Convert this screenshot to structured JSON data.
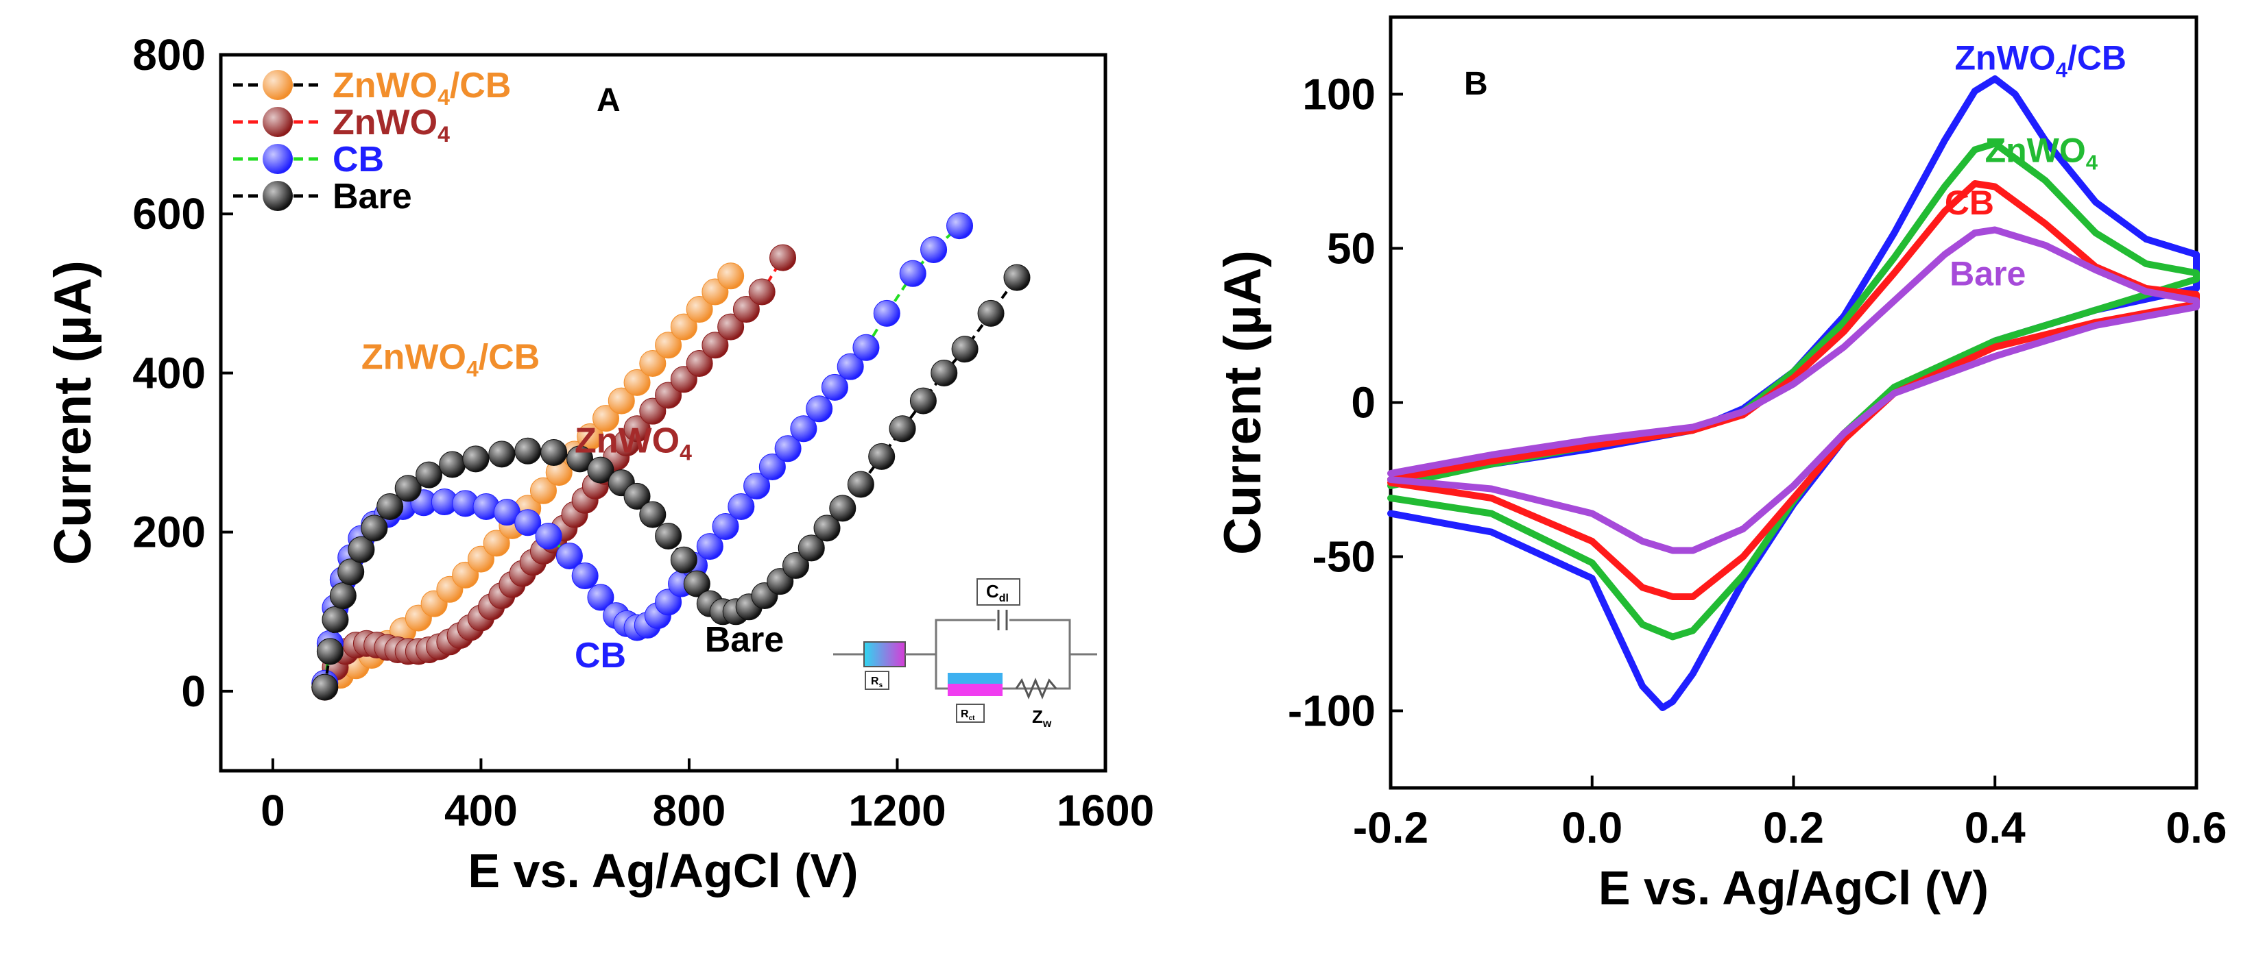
{
  "chart_data": [
    {
      "panel": "A",
      "type": "scatter",
      "title": "",
      "panel_label": "A",
      "xlabel": "E vs. Ag/AgCl (V)",
      "ylabel": "Current (µA)",
      "xlim": [
        -100,
        1600
      ],
      "ylim": [
        -100,
        800
      ],
      "xticks": [
        0,
        400,
        800,
        1200,
        1600
      ],
      "yticks": [
        0,
        200,
        400,
        600,
        800
      ],
      "grid": false,
      "legend": {
        "placement": "top-left",
        "entries": [
          {
            "base": "ZnWO",
            "sub": "4",
            "tail": "/CB",
            "marker_color": "#f28e2b",
            "line_color": "#000000",
            "text_color": "#f28e2b"
          },
          {
            "base": "ZnWO",
            "sub": "4",
            "tail": "",
            "marker_color": "#8b1a1a",
            "line_color": "#ff1a1a",
            "text_color": "#a52a2a"
          },
          {
            "base": "CB",
            "sub": "",
            "tail": "",
            "marker_color": "#1f1fff",
            "line_color": "#22dd22",
            "text_color": "#1f1fff"
          },
          {
            "base": "Bare",
            "sub": "",
            "tail": "",
            "marker_color": "#111111",
            "line_color": "#000000",
            "text_color": "#000000"
          }
        ]
      },
      "annotations": [
        {
          "base": "ZnWO",
          "sub": "4",
          "tail": "/CB",
          "color": "#f28e2b",
          "x": 170,
          "y": 405
        },
        {
          "base": "ZnWO",
          "sub": "4",
          "tail": "",
          "color": "#a52a2a",
          "x": 580,
          "y": 300
        },
        {
          "base": "CB",
          "sub": "",
          "tail": "",
          "color": "#1f1fff",
          "x": 580,
          "y": 30
        },
        {
          "base": "Bare",
          "sub": "",
          "tail": "",
          "color": "#000000",
          "x": 830,
          "y": 50
        }
      ],
      "inset": {
        "labels": [
          "C",
          "dl",
          "R",
          "s",
          "R",
          "ct",
          "Z",
          "w"
        ]
      },
      "series": [
        {
          "name": "ZnWO4/CB",
          "color": "#f28e2b",
          "x": [
            100,
            130,
            160,
            190,
            220,
            250,
            280,
            310,
            340,
            370,
            400,
            430,
            460,
            490,
            520,
            550,
            580,
            610,
            640,
            670,
            700,
            730,
            760,
            790,
            820,
            850,
            880
          ],
          "y": [
            10,
            20,
            32,
            45,
            60,
            76,
            92,
            110,
            128,
            146,
            166,
            186,
            208,
            230,
            252,
            275,
            298,
            320,
            343,
            365,
            388,
            412,
            435,
            458,
            480,
            502,
            522
          ]
        },
        {
          "name": "ZnWO4",
          "color": "#8b1a1a",
          "x": [
            100,
            120,
            140,
            160,
            180,
            200,
            220,
            240,
            260,
            280,
            300,
            320,
            340,
            360,
            380,
            400,
            420,
            440,
            460,
            480,
            500,
            520,
            540,
            560,
            580,
            600,
            620,
            640,
            660,
            680,
            700,
            730,
            760,
            790,
            820,
            850,
            880,
            910,
            940,
            980
          ],
          "y": [
            5,
            30,
            50,
            58,
            60,
            58,
            55,
            52,
            50,
            50,
            52,
            56,
            62,
            70,
            80,
            92,
            106,
            120,
            134,
            148,
            162,
            176,
            190,
            205,
            222,
            240,
            258,
            276,
            294,
            312,
            330,
            352,
            372,
            392,
            412,
            435,
            458,
            480,
            502,
            545
          ]
        },
        {
          "name": "CB",
          "color": "#1f1fff",
          "x": [
            100,
            110,
            120,
            135,
            150,
            170,
            195,
            220,
            250,
            290,
            330,
            370,
            410,
            450,
            490,
            530,
            570,
            600,
            630,
            660,
            680,
            700,
            720,
            740,
            760,
            785,
            810,
            840,
            870,
            900,
            930,
            960,
            990,
            1020,
            1050,
            1080,
            1110,
            1140,
            1180,
            1230,
            1270,
            1320
          ],
          "y": [
            10,
            60,
            105,
            140,
            168,
            192,
            210,
            222,
            232,
            237,
            238,
            236,
            232,
            225,
            212,
            195,
            170,
            145,
            118,
            95,
            85,
            80,
            83,
            95,
            112,
            135,
            158,
            182,
            207,
            232,
            258,
            282,
            305,
            330,
            355,
            382,
            408,
            432,
            475,
            525,
            555,
            585
          ]
        },
        {
          "name": "Bare",
          "color": "#111111",
          "x": [
            100,
            110,
            120,
            135,
            150,
            170,
            195,
            225,
            260,
            300,
            345,
            390,
            440,
            490,
            540,
            590,
            630,
            670,
            700,
            730,
            760,
            790,
            815,
            840,
            865,
            890,
            915,
            945,
            975,
            1005,
            1035,
            1065,
            1095,
            1130,
            1170,
            1210,
            1250,
            1290,
            1330,
            1380,
            1430
          ],
          "y": [
            5,
            50,
            90,
            120,
            150,
            178,
            205,
            232,
            255,
            272,
            285,
            292,
            298,
            302,
            300,
            292,
            278,
            262,
            245,
            222,
            195,
            165,
            135,
            110,
            100,
            100,
            106,
            120,
            138,
            158,
            180,
            205,
            230,
            260,
            295,
            330,
            365,
            400,
            430,
            475,
            520
          ]
        }
      ]
    },
    {
      "panel": "B",
      "type": "line",
      "title": "",
      "panel_label": "B",
      "xlabel": "E vs. Ag/AgCl (V)",
      "ylabel": "Current (µA)",
      "xlim": [
        -0.2,
        0.6
      ],
      "ylim": [
        -125,
        125
      ],
      "xticks": [
        -0.2,
        0.0,
        0.2,
        0.4,
        0.6
      ],
      "xtick_labels": [
        "-0.2",
        "0.0",
        "0.2",
        "0.4",
        "0.6"
      ],
      "yticks": [
        -100,
        -50,
        0,
        50,
        100
      ],
      "grid": false,
      "annotations": [
        {
          "base": "ZnWO",
          "sub": "4",
          "tail": "/CB",
          "color": "#1f1fff",
          "x": 0.36,
          "y": 108
        },
        {
          "base": "ZnWO",
          "sub": "4",
          "tail": "",
          "color": "#22bb33",
          "x": 0.39,
          "y": 78
        },
        {
          "base": "CB",
          "sub": "",
          "tail": "",
          "color": "#ff1a1a",
          "x": 0.35,
          "y": 61
        },
        {
          "base": "Bare",
          "sub": "",
          "tail": "",
          "color": "#a64ad9",
          "x": 0.355,
          "y": 38
        }
      ],
      "series": [
        {
          "name": "ZnWO4/CB",
          "color": "#1f1fff",
          "forward_x": [
            -0.2,
            -0.1,
            0.0,
            0.1,
            0.15,
            0.2,
            0.25,
            0.3,
            0.35,
            0.38,
            0.4,
            0.42,
            0.45,
            0.5,
            0.55,
            0.6
          ],
          "forward_y": [
            -25,
            -20,
            -15,
            -9,
            -2,
            10,
            28,
            55,
            85,
            101,
            105,
            100,
            85,
            65,
            53,
            48
          ],
          "reverse_x": [
            0.6,
            0.5,
            0.4,
            0.3,
            0.25,
            0.2,
            0.15,
            0.12,
            0.1,
            0.08,
            0.07,
            0.05,
            0.03,
            0.0,
            -0.1,
            -0.2
          ],
          "reverse_y": [
            37,
            30,
            20,
            4,
            -12,
            -33,
            -58,
            -76,
            -88,
            -97,
            -99,
            -92,
            -78,
            -57,
            -42,
            -36
          ]
        },
        {
          "name": "ZnWO4",
          "color": "#22bb33",
          "forward_x": [
            -0.2,
            -0.1,
            0.0,
            0.1,
            0.15,
            0.2,
            0.25,
            0.3,
            0.35,
            0.38,
            0.4,
            0.45,
            0.5,
            0.55,
            0.6
          ],
          "forward_y": [
            -27,
            -20,
            -14,
            -9,
            -3,
            10,
            26,
            47,
            70,
            82,
            84,
            72,
            55,
            45,
            42
          ],
          "reverse_x": [
            0.6,
            0.5,
            0.4,
            0.3,
            0.25,
            0.2,
            0.15,
            0.1,
            0.08,
            0.05,
            0.0,
            -0.1,
            -0.2
          ],
          "reverse_y": [
            40,
            30,
            20,
            5,
            -10,
            -32,
            -56,
            -74,
            -76,
            -72,
            -52,
            -36,
            -31
          ]
        },
        {
          "name": "CB",
          "color": "#ff1a1a",
          "forward_x": [
            -0.2,
            -0.1,
            0.0,
            0.1,
            0.15,
            0.2,
            0.25,
            0.3,
            0.35,
            0.38,
            0.4,
            0.45,
            0.5,
            0.55,
            0.6
          ],
          "forward_y": [
            -25,
            -19,
            -14,
            -9,
            -4,
            8,
            23,
            42,
            62,
            71,
            70,
            58,
            44,
            37,
            35
          ],
          "reverse_x": [
            0.6,
            0.5,
            0.4,
            0.3,
            0.25,
            0.2,
            0.15,
            0.1,
            0.08,
            0.05,
            0.0,
            -0.1,
            -0.2
          ],
          "reverse_y": [
            32,
            26,
            18,
            3,
            -12,
            -31,
            -50,
            -63,
            -63,
            -60,
            -45,
            -31,
            -26
          ]
        },
        {
          "name": "Bare",
          "color": "#a64ad9",
          "forward_x": [
            -0.2,
            -0.1,
            0.0,
            0.1,
            0.15,
            0.2,
            0.25,
            0.3,
            0.35,
            0.38,
            0.4,
            0.45,
            0.5,
            0.55,
            0.6
          ],
          "forward_y": [
            -23,
            -17,
            -12,
            -8,
            -3,
            6,
            18,
            33,
            48,
            55,
            56,
            51,
            43,
            36,
            33
          ],
          "reverse_x": [
            0.6,
            0.5,
            0.4,
            0.3,
            0.25,
            0.2,
            0.15,
            0.1,
            0.08,
            0.05,
            0.0,
            -0.1,
            -0.2
          ],
          "reverse_y": [
            31,
            25,
            15,
            3,
            -10,
            -27,
            -41,
            -48,
            -48,
            -45,
            -36,
            -28,
            -25
          ]
        }
      ]
    }
  ]
}
